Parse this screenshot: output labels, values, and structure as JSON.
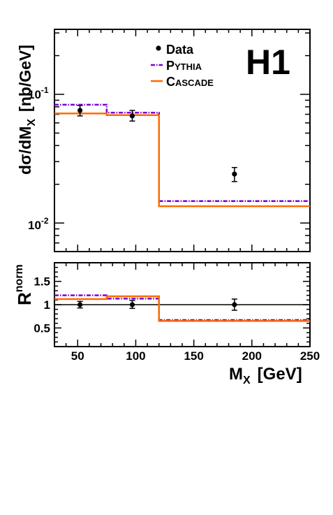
{
  "chart_data": [
    {
      "type": "line",
      "panel": "top",
      "ylabel": "dσ/dM_X [nb/GeV]",
      "ylabel_main": "dσ/dM",
      "ylabel_sub": "X",
      "ylabel_unit": "[nb/GeV]",
      "yscale": "log",
      "ylim": [
        0.006,
        0.32
      ],
      "xlim": [
        30,
        250
      ],
      "ytick_labels": [
        {
          "base": "10",
          "exp": "-1",
          "value": 0.1
        },
        {
          "base": "10",
          "exp": "-2",
          "value": 0.01
        }
      ],
      "experiment_label": "H1",
      "legend_position": "top-center",
      "series": [
        {
          "name": "Data",
          "style": "points-with-errors",
          "color": "#000000",
          "points": [
            {
              "x": 52,
              "y": 0.075,
              "err_lo": 0.007,
              "err_hi": 0.007
            },
            {
              "x": 97,
              "y": 0.068,
              "err_lo": 0.006,
              "err_hi": 0.007
            },
            {
              "x": 185,
              "y": 0.024,
              "err_lo": 0.003,
              "err_hi": 0.003
            }
          ]
        },
        {
          "name": "PYTHIA",
          "name_first": "P",
          "name_rest": "YTHIA",
          "style": "dash-dot-step",
          "color": "#7a00d6",
          "bins": [
            {
              "x0": 30,
              "x1": 75,
              "y": 0.083
            },
            {
              "x0": 75,
              "x1": 120,
              "y": 0.072
            },
            {
              "x0": 120,
              "x1": 250,
              "y": 0.0148
            }
          ]
        },
        {
          "name": "CASCADE",
          "name_first": "C",
          "name_rest": "ASCADE",
          "style": "solid-step",
          "color": "#ff6a00",
          "bins": [
            {
              "x0": 30,
              "x1": 75,
              "y": 0.071
            },
            {
              "x0": 75,
              "x1": 120,
              "y": 0.069
            },
            {
              "x0": 120,
              "x1": 250,
              "y": 0.0135
            }
          ]
        }
      ]
    },
    {
      "type": "line",
      "panel": "bottom",
      "ylabel": "R^norm",
      "ylabel_main": "R",
      "ylabel_sup": "norm",
      "xlabel": "M_X [GeV]",
      "xlabel_main": "M",
      "xlabel_sub": "X",
      "xlabel_unit": "[GeV]",
      "xlim": [
        30,
        250
      ],
      "ylim": [
        0.1,
        1.9
      ],
      "xticks": [
        50,
        100,
        150,
        200,
        250
      ],
      "xtick_labels": [
        "50",
        "100",
        "150",
        "200",
        "250"
      ],
      "yticks": [
        0.5,
        1,
        1.5
      ],
      "ytick_labels": [
        "0.5",
        "1",
        "1.5"
      ],
      "reference_line": 1,
      "series": [
        {
          "name": "Data",
          "style": "points-with-errors",
          "color": "#000000",
          "points": [
            {
              "x": 52,
              "y": 1.0,
              "err_lo": 0.07,
              "err_hi": 0.07
            },
            {
              "x": 97,
              "y": 1.0,
              "err_lo": 0.08,
              "err_hi": 0.09
            },
            {
              "x": 185,
              "y": 1.0,
              "err_lo": 0.12,
              "err_hi": 0.12
            }
          ]
        },
        {
          "name": "PYTHIA",
          "style": "dash-dot-step",
          "color": "#7a00d6",
          "bins": [
            {
              "x0": 30,
              "x1": 75,
              "y": 1.2
            },
            {
              "x0": 75,
              "x1": 120,
              "y": 1.13
            },
            {
              "x0": 120,
              "x1": 250,
              "y": 0.67
            }
          ]
        },
        {
          "name": "CASCADE",
          "style": "solid-step",
          "color": "#ff6a00",
          "bins": [
            {
              "x0": 30,
              "x1": 75,
              "y": 1.12
            },
            {
              "x0": 75,
              "x1": 120,
              "y": 1.18
            },
            {
              "x0": 120,
              "x1": 250,
              "y": 0.65
            }
          ]
        }
      ]
    }
  ]
}
